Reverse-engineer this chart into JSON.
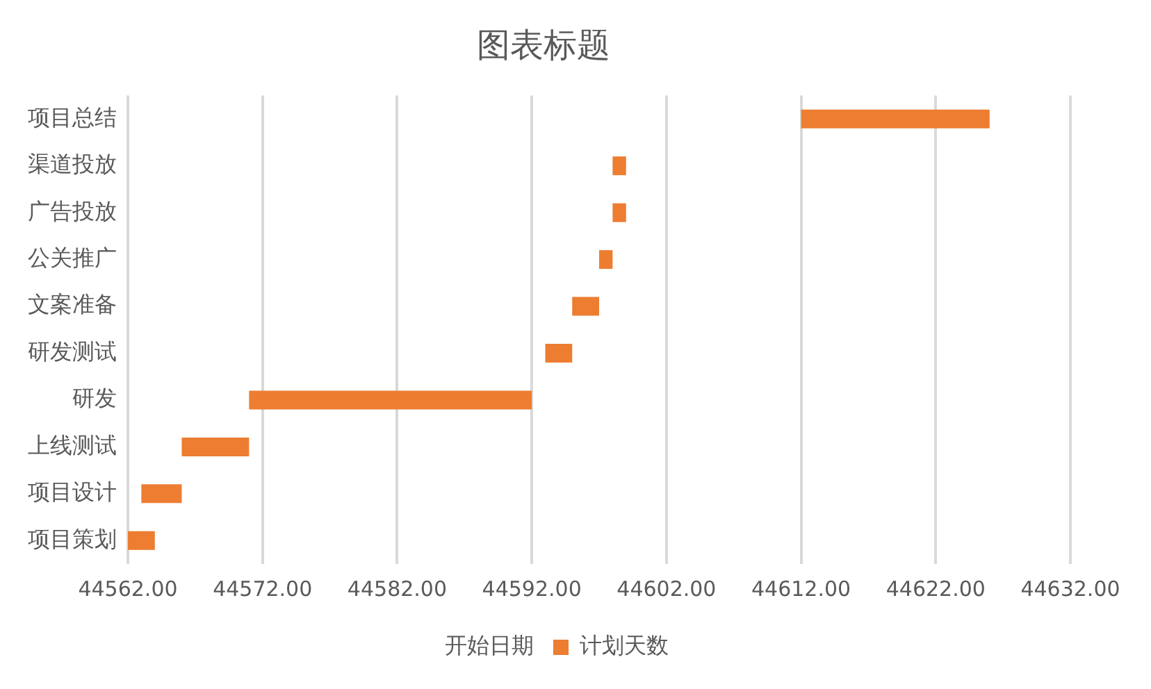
{
  "chart_data": {
    "type": "bar",
    "title": "图表标题",
    "orientation": "horizontal",
    "categories": [
      "项目总结",
      "渠道投放",
      "广告投放",
      "公关推广",
      "文案准备",
      "研发测试",
      "研发",
      "上线测试",
      "项目设计",
      "项目策划"
    ],
    "series": [
      {
        "name": "开始日期",
        "color": null,
        "values": [
          null,
          null,
          null,
          null,
          null,
          null,
          null,
          null,
          null,
          null
        ]
      },
      {
        "name": "计划天数",
        "color": "#ed7d31",
        "base": [
          44612,
          44598,
          44598,
          44597,
          44595,
          44593,
          44571,
          44566,
          44563,
          44562
        ],
        "values": [
          14,
          1,
          1,
          1,
          2,
          2,
          21,
          5,
          3,
          2
        ]
      }
    ],
    "xlim": [
      44562,
      44632
    ],
    "xticks": [
      {
        "value": 44562,
        "label": "44562.00"
      },
      {
        "value": 44572,
        "label": "44572.00"
      },
      {
        "value": 44582,
        "label": "44582.00"
      },
      {
        "value": 44592,
        "label": "44592.00"
      },
      {
        "value": 44602,
        "label": "44602.00"
      },
      {
        "value": 44612,
        "label": "44612.00"
      },
      {
        "value": 44622,
        "label": "44622.00"
      },
      {
        "value": 44632,
        "label": "44632.00"
      }
    ],
    "grid": "x",
    "legend": "bottom"
  }
}
